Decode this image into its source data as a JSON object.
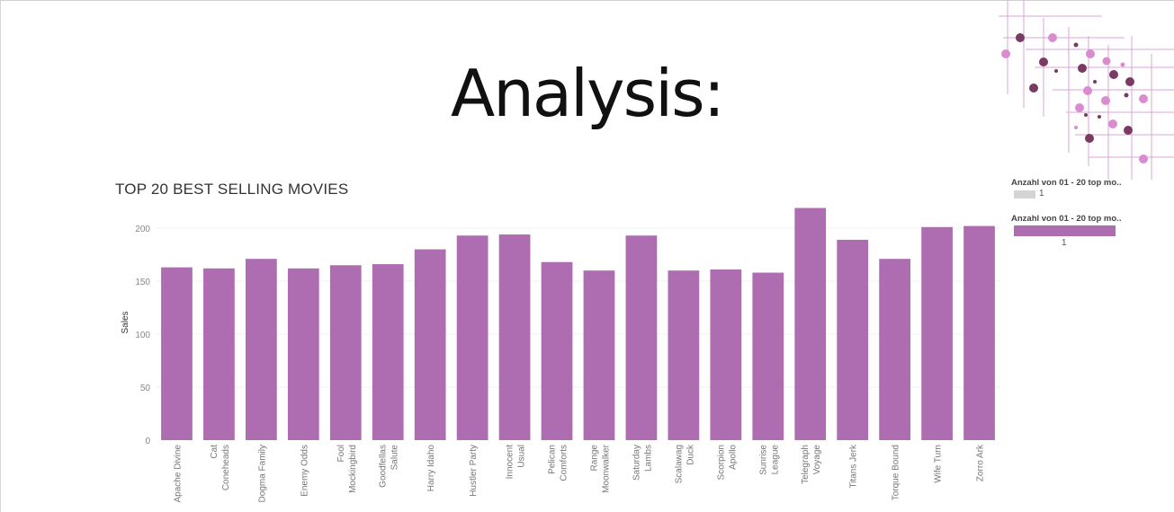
{
  "slide": {
    "title": "Analysis:"
  },
  "legend": {
    "size_title": "Anzahl von 01 - 20 top mo..",
    "size_value": "1",
    "color_title": "Anzahl von 01 - 20 top mo..",
    "color_value": "1"
  },
  "colors": {
    "bar": "#ad6db0",
    "legend_grey": "#d4d4d4",
    "deco_lines": "#d9a6d6",
    "deco_dark": "#7a3b63",
    "deco_light": "#d98ccf"
  },
  "chart_data": {
    "type": "bar",
    "title": "TOP 20 BEST SELLING MOVIES",
    "xlabel": "",
    "ylabel": "Sales",
    "ylim": [
      0,
      222
    ],
    "yticks": [
      0,
      50,
      100,
      150,
      200
    ],
    "grid": true,
    "legend_position": "right",
    "categories": [
      [
        "Apache Divine"
      ],
      [
        "Cat",
        "Coneheads"
      ],
      [
        "Dogma Family"
      ],
      [
        "Enemy Odds"
      ],
      [
        "Fool",
        "Mockingbird"
      ],
      [
        "Goodfellas",
        "Salute"
      ],
      [
        "Harry Idaho"
      ],
      [
        "Hustler Party"
      ],
      [
        "Innocent",
        "Usual"
      ],
      [
        "Pelican",
        "Comforts"
      ],
      [
        "Range",
        "Moonwalker"
      ],
      [
        "Saturday",
        "Lambs"
      ],
      [
        "Scalawag",
        "Duck"
      ],
      [
        "Scorpion",
        "Apollo"
      ],
      [
        "Sunrise",
        "League"
      ],
      [
        "Telegraph",
        "Voyage"
      ],
      [
        "Titans Jerk"
      ],
      [
        "Torque Bound"
      ],
      [
        "Wife Turn"
      ],
      [
        "Zorro Ark"
      ]
    ],
    "values": [
      163,
      162,
      171,
      162,
      165,
      166,
      180,
      193,
      194,
      168,
      160,
      193,
      160,
      161,
      158,
      219,
      189,
      171,
      201,
      202
    ]
  }
}
